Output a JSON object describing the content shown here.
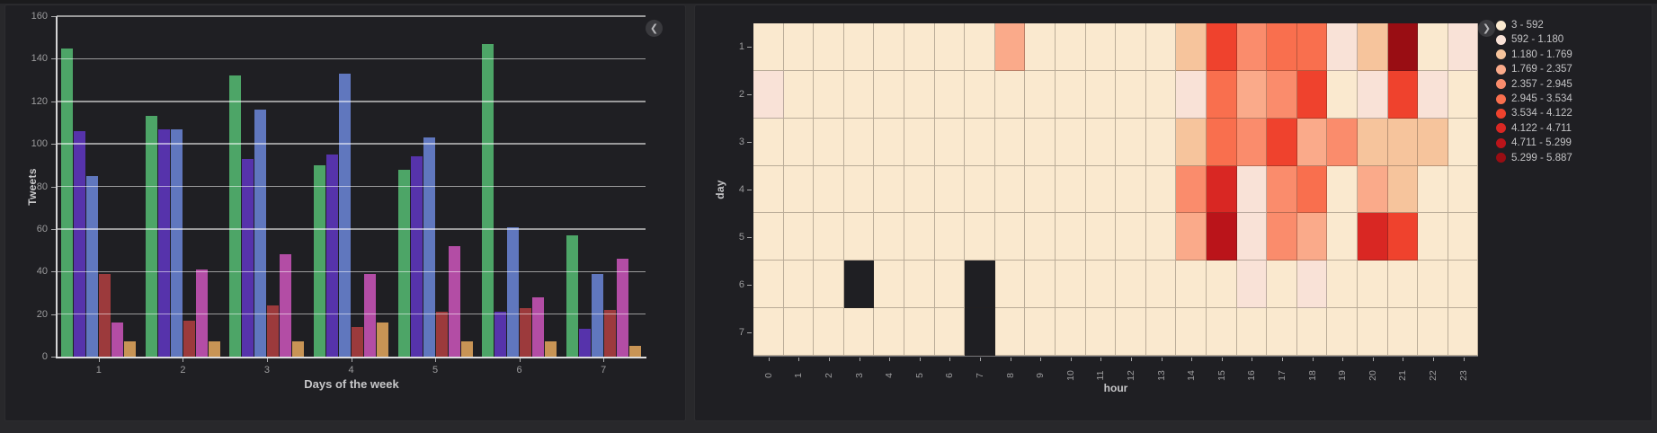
{
  "panels": {
    "bar": {
      "ylabel": "Tweets",
      "xlabel": "Days of the week",
      "nav_icon": "chevron-left",
      "nav_glyph": "❮"
    },
    "heatmap": {
      "ylabel": "day",
      "xlabel": "hour",
      "nav_icon": "chevron-right",
      "nav_glyph": "❯"
    }
  },
  "chart_data": [
    {
      "type": "bar",
      "title": "",
      "xlabel": "Days of the week",
      "ylabel": "Tweets",
      "categories": [
        "1",
        "2",
        "3",
        "4",
        "5",
        "6",
        "7"
      ],
      "y_ticks": [
        0,
        20,
        40,
        60,
        80,
        100,
        120,
        140,
        160
      ],
      "ylim": [
        0,
        160
      ],
      "grid": true,
      "legend_position": "none",
      "series": [
        {
          "name": "green",
          "color": "#4DA567",
          "values": [
            145,
            113,
            132,
            90,
            88,
            147,
            57
          ]
        },
        {
          "name": "purple",
          "color": "#5633AB",
          "values": [
            106,
            107,
            93,
            95,
            94,
            21,
            13
          ]
        },
        {
          "name": "blue",
          "color": "#6077BE",
          "values": [
            85,
            107,
            116,
            133,
            103,
            61,
            39
          ]
        },
        {
          "name": "dark-red",
          "color": "#9C3A3C",
          "values": [
            39,
            17,
            24,
            14,
            21,
            23,
            22
          ]
        },
        {
          "name": "magenta",
          "color": "#B34DA5",
          "values": [
            16,
            41,
            48,
            39,
            52,
            28,
            46
          ]
        },
        {
          "name": "orange",
          "color": "#C89455",
          "values": [
            7,
            7,
            7,
            16,
            7,
            7,
            5
          ]
        }
      ]
    },
    {
      "type": "heatmap",
      "xlabel": "hour",
      "ylabel": "day",
      "x_ticks": [
        "0",
        "1",
        "2",
        "3",
        "4",
        "5",
        "6",
        "7",
        "8",
        "9",
        "10",
        "11",
        "12",
        "13",
        "14",
        "15",
        "16",
        "17",
        "18",
        "19",
        "20",
        "21",
        "22",
        "23"
      ],
      "y_ticks": [
        "1",
        "2",
        "3",
        "4",
        "5",
        "6",
        "7"
      ],
      "legend_position": "top-right",
      "no_data_color": "#1F1F23",
      "legend": [
        {
          "label": "3 - 592",
          "color": "#FAE9CF"
        },
        {
          "label": "592 - 1.180",
          "color": "#F9E2D7"
        },
        {
          "label": "1.180 - 1.769",
          "color": "#F6C49C"
        },
        {
          "label": "1.769 - 2.357",
          "color": "#FAAA8A"
        },
        {
          "label": "2.357 - 2.945",
          "color": "#FA8C6C"
        },
        {
          "label": "2.945 - 3.534",
          "color": "#F96F4E"
        },
        {
          "label": "3.534 - 4.122",
          "color": "#EF422D"
        },
        {
          "label": "4.122 - 4.711",
          "color": "#D92723"
        },
        {
          "label": "4.711 - 5.299",
          "color": "#BA141A"
        },
        {
          "label": "5.299 - 5.887",
          "color": "#990D13"
        }
      ],
      "rows": [
        {
          "day": "1",
          "cells": [
            1,
            1,
            1,
            1,
            1,
            1,
            1,
            1,
            4,
            1,
            1,
            1,
            1,
            1,
            3,
            7,
            5,
            6,
            6,
            2,
            3,
            10,
            1,
            2
          ]
        },
        {
          "day": "2",
          "cells": [
            2,
            1,
            1,
            1,
            1,
            1,
            1,
            1,
            1,
            1,
            1,
            1,
            1,
            1,
            2,
            6,
            4,
            5,
            7,
            1,
            2,
            7,
            2,
            1
          ]
        },
        {
          "day": "3",
          "cells": [
            1,
            1,
            1,
            1,
            1,
            1,
            1,
            1,
            1,
            1,
            1,
            1,
            1,
            1,
            3,
            6,
            5,
            7,
            4,
            5,
            3,
            3,
            3,
            1
          ]
        },
        {
          "day": "4",
          "cells": [
            1,
            1,
            1,
            1,
            1,
            1,
            1,
            1,
            1,
            1,
            1,
            1,
            1,
            1,
            5,
            8,
            2,
            5,
            6,
            1,
            4,
            3,
            1,
            1
          ]
        },
        {
          "day": "5",
          "cells": [
            1,
            1,
            1,
            1,
            1,
            1,
            1,
            1,
            1,
            1,
            1,
            1,
            1,
            1,
            4,
            9,
            2,
            5,
            4,
            1,
            8,
            7,
            1,
            1
          ]
        },
        {
          "day": "6",
          "cells": [
            1,
            1,
            1,
            0,
            1,
            1,
            1,
            0,
            1,
            1,
            1,
            1,
            1,
            1,
            1,
            1,
            2,
            1,
            2,
            1,
            1,
            1,
            1,
            1
          ]
        },
        {
          "day": "7",
          "cells": [
            1,
            1,
            1,
            1,
            1,
            1,
            1,
            0,
            1,
            1,
            1,
            1,
            1,
            1,
            1,
            1,
            1,
            1,
            1,
            1,
            1,
            1,
            1,
            1
          ]
        }
      ]
    }
  ]
}
